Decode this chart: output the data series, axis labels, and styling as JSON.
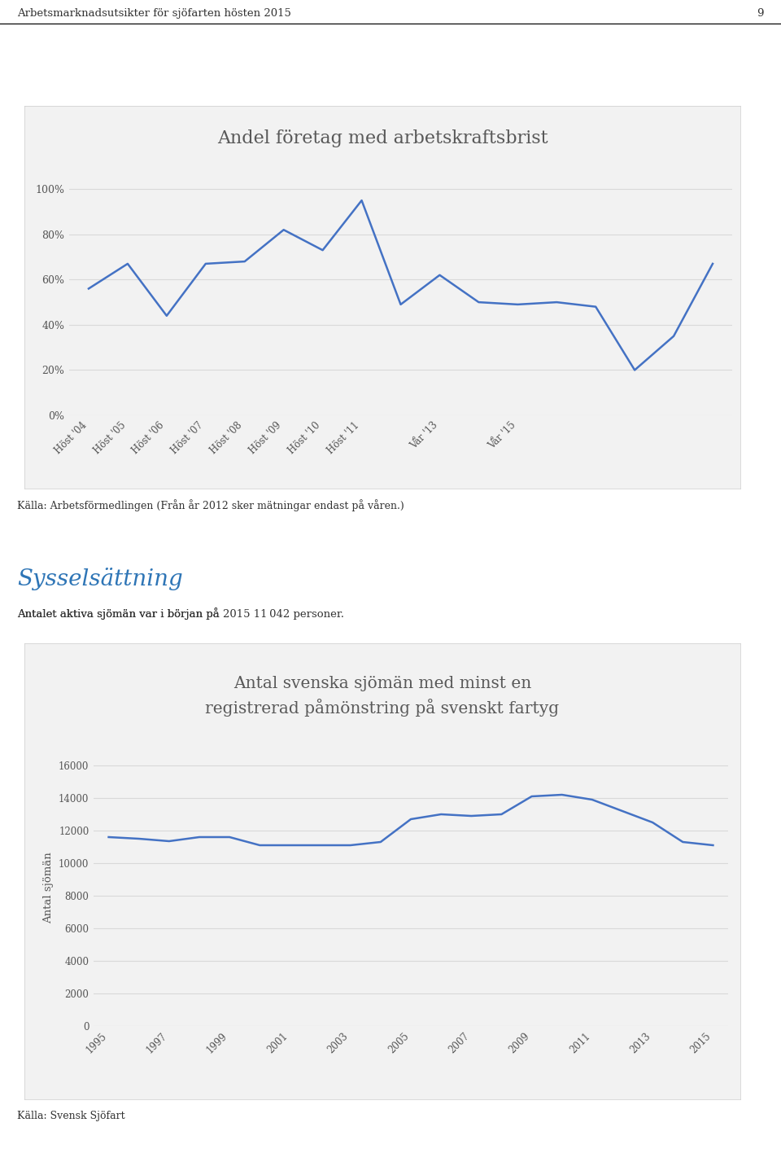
{
  "page_header": "Arbetsmarknadsutsikter för sjöfarten hösten 2015",
  "page_number": "9",
  "chart1_title": "Andel företag med arbetskraftsbrist",
  "chart1_xlabel_labels": [
    "Höst '04",
    "Höst '05",
    "Höst '06",
    "Höst '07",
    "Höst '08",
    "Höst '09",
    "Höst '10",
    "Höst '11",
    "Vår '13",
    "Vår '15"
  ],
  "chart1_values": [
    0.56,
    0.67,
    0.44,
    0.67,
    0.68,
    0.82,
    0.73,
    0.95,
    0.49,
    0.62,
    0.5,
    0.49,
    0.5,
    0.48,
    0.2,
    0.35,
    0.67
  ],
  "chart1_x": [
    0,
    1,
    2,
    3,
    4,
    5,
    6,
    7,
    8,
    9,
    10,
    11,
    12,
    13,
    14,
    15,
    16
  ],
  "chart1_xtick_positions": [
    0,
    1,
    2,
    3,
    4,
    5,
    6,
    7,
    9,
    11
  ],
  "chart1_ytick_labels": [
    "0%",
    "20%",
    "40%",
    "60%",
    "80%",
    "100%"
  ],
  "chart1_ytick_values": [
    0.0,
    0.2,
    0.4,
    0.6,
    0.8,
    1.0
  ],
  "chart1_ylim": [
    0.0,
    1.08
  ],
  "chart1_line_color": "#4472C4",
  "chart1_source": "Källa: Arbetsförmedlingen (Från år 2012 sker mätningar endast på våren.)",
  "section_heading": "Sysselsättning",
  "section_heading_color": "#2E75B6",
  "section_text_normal1": "Antalet aktiva sjömän var i början på ",
  "section_text_bold1": "2015",
  "section_text_normal2": " ",
  "section_text_bold2": "11 042",
  "section_text_normal3": " personer.",
  "chart2_title_line1": "Antal svenska sjömän med minst en",
  "chart2_title_line2": "registrerad påmönstring på svenskt fartyg",
  "chart2_ylabel": "Antal sjömän",
  "chart2_xlabel_labels": [
    "1995",
    "1997",
    "1999",
    "2001",
    "2003",
    "2005",
    "2007",
    "2009",
    "2011",
    "2013",
    "2015"
  ],
  "chart2_x": [
    1995,
    1996,
    1997,
    1998,
    1999,
    2000,
    2001,
    2002,
    2003,
    2004,
    2005,
    2006,
    2007,
    2008,
    2009,
    2010,
    2011,
    2012,
    2013,
    2014,
    2015
  ],
  "chart2_values": [
    11600,
    11500,
    11350,
    11600,
    11600,
    11100,
    11100,
    11100,
    11100,
    11300,
    12700,
    13000,
    12900,
    13000,
    14100,
    14200,
    13900,
    13200,
    12500,
    11300,
    11100
  ],
  "chart2_ytick_values": [
    0,
    2000,
    4000,
    6000,
    8000,
    10000,
    12000,
    14000,
    16000
  ],
  "chart2_ytick_labels": [
    "0",
    "2000",
    "4000",
    "6000",
    "8000",
    "10000",
    "12000",
    "14000",
    "16000"
  ],
  "chart2_ylim": [
    0,
    17000
  ],
  "chart2_line_color": "#4472C4",
  "chart2_source": "Källa: Svensk Sjöfart",
  "background_color": "#FFFFFF",
  "chart_bg_color": "#F2F2F2",
  "grid_color": "#D9D9D9",
  "header_line_color": "#000000"
}
